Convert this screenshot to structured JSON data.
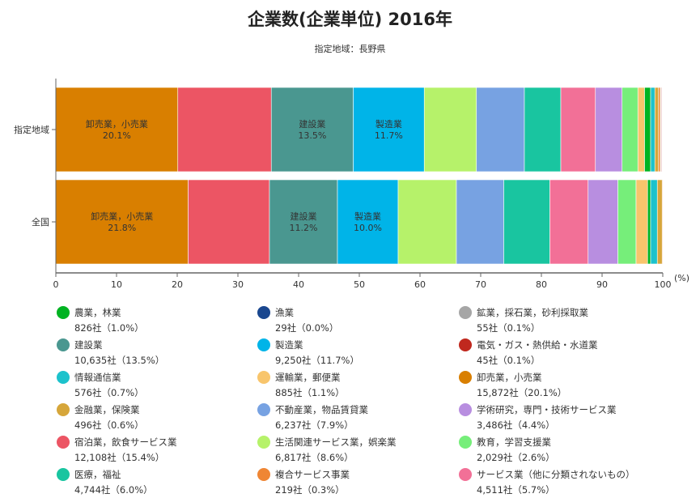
{
  "title": "企業数(企業単位) 2016年",
  "subtitle": "指定地域：長野県",
  "chart_data": {
    "type": "bar",
    "orientation": "horizontal",
    "stacked": "percent",
    "categories": [
      "指定地域",
      "全国"
    ],
    "xlabel": "(%)",
    "xlim": [
      0,
      100
    ],
    "xticks": [
      "0",
      "10",
      "20",
      "30",
      "40",
      "50",
      "60",
      "70",
      "80",
      "90",
      "100"
    ],
    "legend_position": "bottom",
    "series": [
      {
        "name": "卸売業，小売業",
        "color": "#d97f00",
        "values": [
          20.1,
          21.8
        ],
        "count": "15,872社",
        "share": "（20.1%）",
        "label": true
      },
      {
        "name": "宿泊業，飲食サービス業",
        "color": "#ec5564",
        "values": [
          15.4,
          13.4
        ],
        "count": "12,108社",
        "share": "（15.4%）"
      },
      {
        "name": "建設業",
        "color": "#4a9790",
        "values": [
          13.5,
          11.2
        ],
        "count": "10,635社",
        "share": "（13.5%）",
        "label": true
      },
      {
        "name": "製造業",
        "color": "#00b4e8",
        "values": [
          11.7,
          10.0
        ],
        "count": "9,250社",
        "share": "（11.7%）",
        "label": true
      },
      {
        "name": "生活関連サービス業，娯楽業",
        "color": "#b6f26a",
        "values": [
          8.6,
          9.6
        ],
        "count": "6,817社",
        "share": "（8.6%）"
      },
      {
        "name": "不動産業，物品賃貸業",
        "color": "#77a2e2",
        "values": [
          7.9,
          7.8
        ],
        "count": "6,237社",
        "share": "（7.9%）"
      },
      {
        "name": "医療，福祉",
        "color": "#19c5a0",
        "values": [
          6.0,
          7.6
        ],
        "count": "4,744社",
        "share": "（6.0%）"
      },
      {
        "name": "サービス業（他に分類されないもの）",
        "color": "#f27097",
        "values": [
          5.7,
          6.3
        ],
        "count": "4,511社",
        "share": "（5.7%）"
      },
      {
        "name": "学術研究，専門・技術サービス業",
        "color": "#b88ee0",
        "values": [
          4.4,
          4.9
        ],
        "count": "3,486社",
        "share": "（4.4%）"
      },
      {
        "name": "教育，学習支援業",
        "color": "#76ee7a",
        "values": [
          2.6,
          3.0
        ],
        "count": "2,029社",
        "share": "（2.6%）"
      },
      {
        "name": "運輸業，郵便業",
        "color": "#f8c56c",
        "values": [
          1.1,
          1.9
        ],
        "count": "885社",
        "share": "（1.1%）"
      },
      {
        "name": "農業，林業",
        "color": "#00b322",
        "values": [
          1.0,
          0.5
        ],
        "count": "826社",
        "share": "（1.0%）"
      },
      {
        "name": "情報通信業",
        "color": "#1cc2cc",
        "values": [
          0.7,
          1.1
        ],
        "count": "576社",
        "share": "（0.7%）"
      },
      {
        "name": "金融業，保険業",
        "color": "#d6a63a",
        "values": [
          0.6,
          0.8
        ],
        "count": "496社",
        "share": "（0.6%）"
      },
      {
        "name": "複合サービス事業",
        "color": "#ef8634",
        "values": [
          0.3,
          0.1
        ],
        "count": "219社",
        "share": "（0.3%）"
      },
      {
        "name": "鉱業，採石業，砂利採取業",
        "color": "#a6a6a6",
        "values": [
          0.1,
          0.0
        ],
        "count": "55社",
        "share": "（0.1%）"
      },
      {
        "name": "電気・ガス・熱供給・水道業",
        "color": "#c0281e",
        "values": [
          0.1,
          0.0
        ],
        "count": "45社",
        "share": "（0.1%）"
      },
      {
        "name": "漁業",
        "color": "#1a478f",
        "values": [
          0.0,
          0.0
        ],
        "count": "29社",
        "share": "（0.0%）"
      }
    ],
    "legend_order": [
      "農業，林業",
      "漁業",
      "鉱業，採石業，砂利採取業",
      "建設業",
      "製造業",
      "電気・ガス・熱供給・水道業",
      "情報通信業",
      "運輸業，郵便業",
      "卸売業，小売業",
      "金融業，保険業",
      "不動産業，物品賃貸業",
      "学術研究，専門・技術サービス業",
      "宿泊業，飲食サービス業",
      "生活関連サービス業，娯楽業",
      "教育，学習支援業",
      "医療，福祉",
      "複合サービス事業",
      "サービス業（他に分類されないもの）"
    ]
  }
}
